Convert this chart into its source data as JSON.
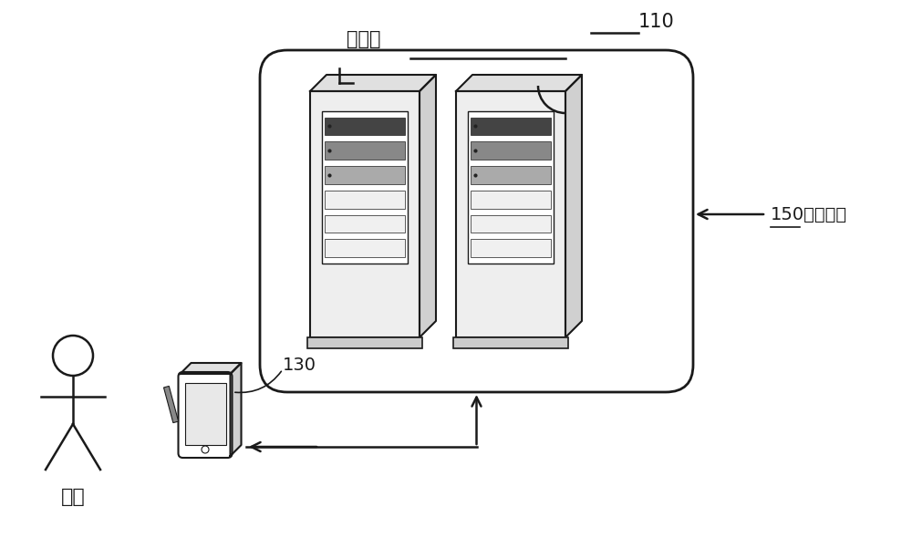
{
  "bg_color": "#ffffff",
  "line_color": "#1a1a1a",
  "label_110": "110",
  "label_server": "服务器",
  "label_130": "130",
  "label_150": "150视频输入",
  "label_user": "用户",
  "figsize": [
    10.0,
    5.9
  ],
  "dpi": 100
}
